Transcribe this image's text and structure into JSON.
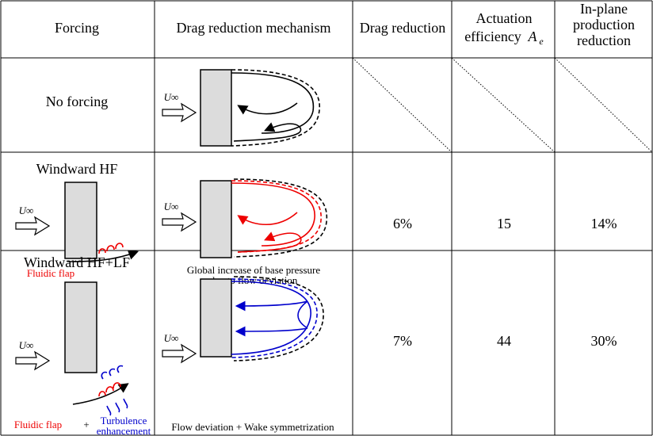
{
  "header": {
    "forcing": "Forcing",
    "mechanism": "Drag reduction mechanism",
    "drag_reduction": "Drag reduction",
    "efficiency": {
      "lines": [
        "Actuation",
        "efficiency"
      ],
      "symbol": "A",
      "subscript": "e"
    },
    "production": {
      "lines": [
        "In-plane",
        "production",
        "reduction"
      ]
    }
  },
  "flow_label": "U∞",
  "rows": [
    {
      "forcing": "No forcing"
    },
    {
      "forcing": "Windward  HF",
      "actuator_label": "Fluidic flap",
      "mechanism_caption": [
        "Global increase of base pressure",
        "due to flow deviation"
      ],
      "drag_reduction": "6%",
      "efficiency": "15",
      "production": "14%"
    },
    {
      "forcing": "Windward  HF+LF",
      "actuator_label": "Fluidic flap",
      "plus": "+",
      "turbulence_label": [
        "Turbulence",
        "enhancement"
      ],
      "mechanism_caption": [
        "Flow deviation + Wake symmetrization"
      ],
      "drag_reduction": "7%",
      "efficiency": "44",
      "production": "30%"
    }
  ]
}
